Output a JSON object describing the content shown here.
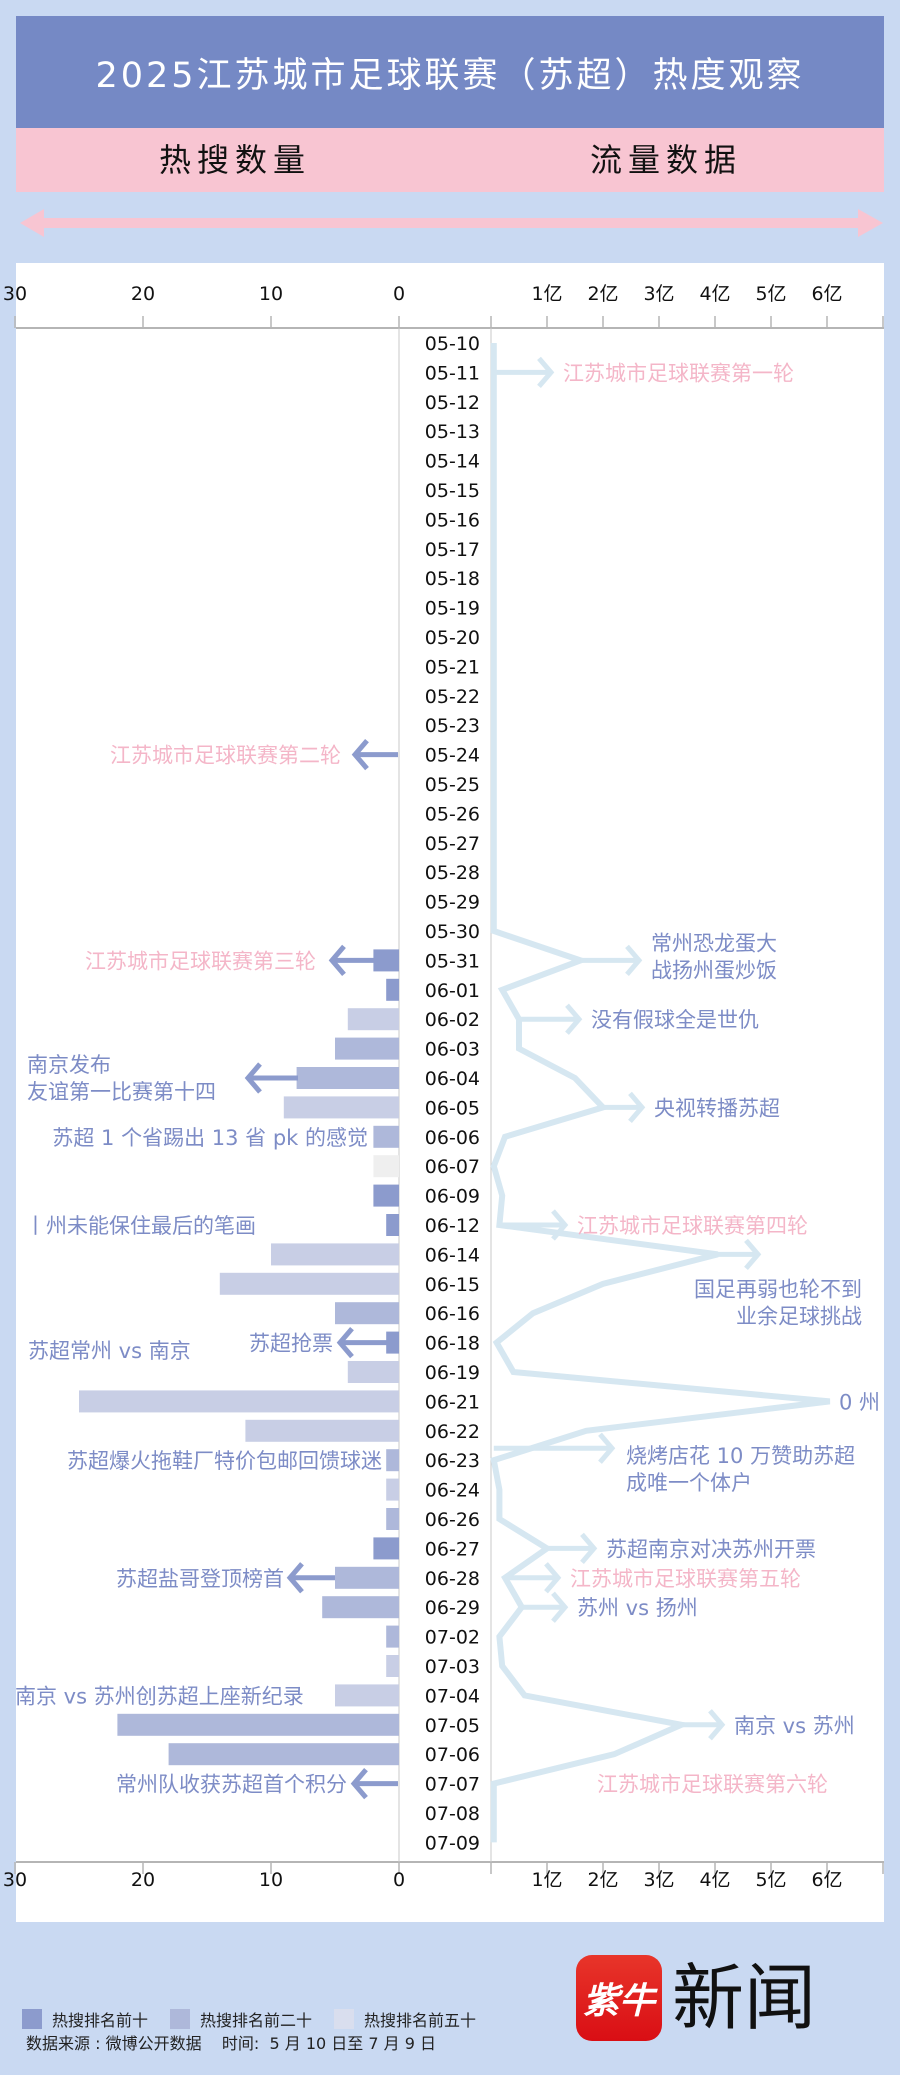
{
  "header": {
    "title": "2025江苏城市足球联赛（苏超）热度观察",
    "left_subtitle": "热搜数量",
    "right_subtitle": "流量数据"
  },
  "colors": {
    "background": "#c9d9f2",
    "title_bar": "#7589c5",
    "subtitle_bar": "#f8c5d2",
    "rank_top10": "#8c9bcd",
    "rank_top20": "#aeb8da",
    "rank_top50": "#c8cee5",
    "rank_other": "#efefef",
    "traffic_line": "#d6e7f1",
    "pink_text": "#f4b6c8",
    "blue_text": "#7d8cc6"
  },
  "chart_data": [
    {
      "type": "bar",
      "orientation": "horizontal",
      "direction": "leftward",
      "xlim": [
        0,
        30
      ],
      "x_ticks": [
        "30",
        "20",
        "10",
        "0"
      ],
      "categories": [
        "05-10",
        "05-11",
        "05-12",
        "05-13",
        "05-14",
        "05-15",
        "05-16",
        "05-17",
        "05-18",
        "05-19",
        "05-20",
        "05-21",
        "05-22",
        "05-23",
        "05-24",
        "05-25",
        "05-26",
        "05-27",
        "05-28",
        "05-29",
        "05-30",
        "05-31",
        "06-01",
        "06-02",
        "06-03",
        "06-04",
        "06-05",
        "06-06",
        "06-07",
        "06-09",
        "06-12",
        "06-14",
        "06-15",
        "06-16",
        "06-18",
        "06-19",
        "06-21",
        "06-22",
        "06-23",
        "06-24",
        "06-26",
        "06-27",
        "06-28",
        "06-29",
        "07-02",
        "07-03",
        "07-04",
        "07-05",
        "07-06",
        "07-07",
        "07-08",
        "07-09"
      ],
      "values": [
        0,
        0,
        0,
        0,
        0,
        0,
        0,
        0,
        0,
        0,
        0,
        0,
        0,
        0,
        0,
        0,
        0,
        0,
        0,
        0,
        0,
        2,
        1,
        4,
        5,
        8,
        9,
        2,
        2,
        2,
        1,
        10,
        14,
        5,
        1,
        4,
        25,
        12,
        1,
        1,
        1,
        2,
        5,
        6,
        1,
        1,
        5,
        22,
        18,
        0,
        0,
        0
      ],
      "rank": [
        "",
        "",
        "",
        "",
        "",
        "",
        "",
        "",
        "",
        "",
        "",
        "",
        "",
        "",
        "",
        "",
        "",
        "",
        "",
        "",
        "",
        "top10",
        "top10",
        "top50",
        "top20",
        "top20",
        "top50",
        "top20",
        "other",
        "top10",
        "top10",
        "top50",
        "top50",
        "top20",
        "top10",
        "top50",
        "top50",
        "top50",
        "top20",
        "top50",
        "top20",
        "top10",
        "top20",
        "top20",
        "top20",
        "top50",
        "top50",
        "top20",
        "top20",
        "",
        "",
        ""
      ]
    },
    {
      "type": "line",
      "xlim": [
        0,
        6.5
      ],
      "x_ticks": [
        "1亿",
        "2亿",
        "3亿",
        "4亿",
        "5亿",
        "6亿"
      ],
      "unit": "亿",
      "values": [
        0.05,
        0.05,
        0.05,
        0.05,
        0.05,
        0.05,
        0.05,
        0.05,
        0.05,
        0.05,
        0.05,
        0.05,
        0.05,
        0.05,
        0.05,
        0.05,
        0.05,
        0.05,
        0.05,
        0.05,
        0.05,
        1.6,
        0.2,
        0.5,
        0.5,
        1.5,
        2.0,
        0.25,
        0.05,
        0.2,
        0.15,
        4.05,
        2.0,
        0.75,
        0.1,
        0.4,
        6.05,
        1.7,
        0.05,
        0.15,
        0.15,
        1.0,
        0.25,
        0.55,
        0.15,
        0.2,
        0.6,
        3.4,
        2.2,
        0.05,
        0.05,
        0.05
      ]
    }
  ],
  "annotations_left": [
    {
      "date": "05-24",
      "text": "江苏城市足球联赛第二轮",
      "color": "pink",
      "arrow": true
    },
    {
      "date": "05-31",
      "text": "江苏城市足球联赛第三轮",
      "color": "pink",
      "arrow": true
    },
    {
      "date": "06-04",
      "text": "南京发布\n友谊第一比赛第十四",
      "color": "blue",
      "arrow": true
    },
    {
      "date": "06-06",
      "text": "苏超 1 个省踢出 13 省 pk 的感觉",
      "color": "blue",
      "arrow": false
    },
    {
      "date": "06-12",
      "text": "丨州未能保住最后的笔画",
      "color": "blue",
      "arrow": false
    },
    {
      "date": "06-18",
      "text": "苏超抢票",
      "color": "blue",
      "arrow": true
    },
    {
      "date": "06-19",
      "text": "苏超常州 vs 南京",
      "color": "blue",
      "arrow": false
    },
    {
      "date": "06-23",
      "text": "苏超爆火拖鞋厂特价包邮回馈球迷",
      "color": "blue",
      "arrow": false
    },
    {
      "date": "06-28",
      "text": "苏超盐哥登顶榜首",
      "color": "blue",
      "arrow": true
    },
    {
      "date": "07-04",
      "text": "南京 vs 苏州创苏超上座新纪录",
      "color": "blue",
      "arrow": false
    },
    {
      "date": "07-07",
      "text": "常州队收获苏超首个积分",
      "color": "blue",
      "arrow": true
    }
  ],
  "annotations_right": [
    {
      "date": "05-11",
      "text": "江苏城市足球联赛第一轮",
      "color": "pink",
      "arrow": true
    },
    {
      "date": "05-31",
      "text": "常州恐龙蛋大\n战扬州蛋炒饭",
      "color": "blue",
      "arrow": true
    },
    {
      "date": "06-02",
      "text": "没有假球全是世仇",
      "color": "blue",
      "arrow": true
    },
    {
      "date": "06-05",
      "text": "央视转播苏超",
      "color": "blue",
      "arrow": true
    },
    {
      "date": "06-12",
      "text": "江苏城市足球联赛第四轮",
      "color": "pink",
      "arrow": true
    },
    {
      "date": "06-14",
      "text": "国足再弱也轮不到\n业余足球挑战",
      "color": "blue",
      "arrow": true
    },
    {
      "date": "06-21",
      "text": "0 州",
      "color": "blue",
      "arrow": false
    },
    {
      "date": "06-23",
      "text": "烧烤店花 10 万赞助苏超\n成唯一个体户",
      "color": "blue",
      "arrow": true
    },
    {
      "date": "06-27",
      "text": "苏超南京对决苏州开票",
      "color": "blue",
      "arrow": true
    },
    {
      "date": "06-28",
      "text": "江苏城市足球联赛第五轮",
      "color": "pink",
      "arrow": true
    },
    {
      "date": "06-29",
      "text": "苏州 vs 扬州",
      "color": "blue",
      "arrow": true
    },
    {
      "date": "07-05",
      "text": "南京 vs 苏州",
      "color": "blue",
      "arrow": true
    },
    {
      "date": "07-07",
      "text": "江苏城市足球联赛第六轮",
      "color": "pink",
      "arrow": false
    }
  ],
  "legend": [
    {
      "label": "热搜排名前十",
      "key": "top10"
    },
    {
      "label": "热搜排名前二十",
      "key": "top20"
    },
    {
      "label": "热搜排名前五十",
      "key": "top50"
    }
  ],
  "footer": {
    "source": "数据来源 : 微博公开数据    时间:  5 月 10 日至 7 月 9 日",
    "logo_mark": "紫牛",
    "logo_text": "新闻"
  }
}
